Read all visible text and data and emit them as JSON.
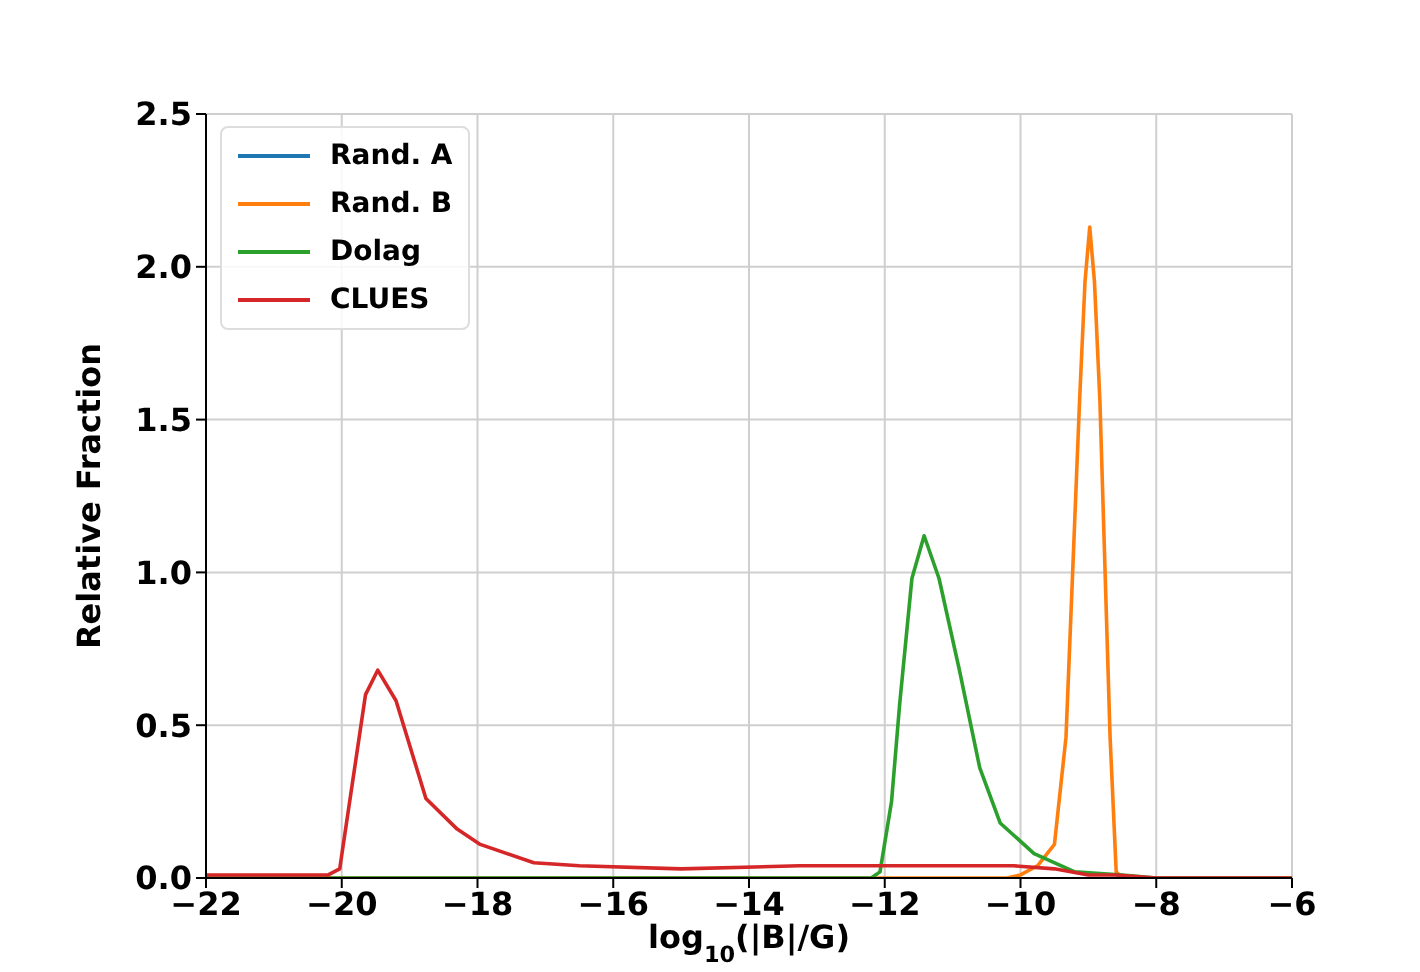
{
  "chart_data": {
    "type": "line",
    "xlabel": "log$_{10}$(|B|/G)",
    "ylabel": "Relative Fraction",
    "xlim": [
      -22,
      -6
    ],
    "xticks": [
      -22,
      -20,
      -18,
      -16,
      -14,
      -12,
      -10,
      -8,
      -6
    ],
    "ylim": [
      0,
      2.5
    ],
    "yticks": [
      {
        "value": 0,
        "label": "0.0"
      },
      0.5,
      {
        "value": 1,
        "label": "1.0"
      },
      1.5,
      {
        "value": 2,
        "label": "2.0"
      },
      2.5
    ],
    "grid": true,
    "legend": "top left",
    "marker": "none",
    "line_style": "solid",
    "series": [
      {
        "name": "Rand. A",
        "color": "#1f77b4"
      },
      {
        "name": "Rand. B",
        "color": "#ff7f0e",
        "x": [
          -22,
          -10.2,
          -10.0,
          -9.75,
          -9.5,
          -9.33,
          -9.13,
          -9.05,
          -8.98,
          -8.91,
          -8.83,
          -8.68,
          -8.59,
          -8.5,
          -6
        ],
        "values": [
          0,
          0,
          0.01,
          0.04,
          0.11,
          0.46,
          1.56,
          1.95,
          2.13,
          1.95,
          1.56,
          0.46,
          0.02,
          0,
          0
        ]
      },
      {
        "name": "Dolag",
        "color": "#2ca02c",
        "x": [
          -22,
          -12.2,
          -12.07,
          -11.9,
          -11.78,
          -11.6,
          -11.42,
          -11.2,
          -10.9,
          -10.6,
          -10.3,
          -9.8,
          -9.2,
          -8.5,
          -8,
          -6
        ],
        "values": [
          0,
          0,
          0.02,
          0.25,
          0.57,
          0.98,
          1.12,
          0.98,
          0.68,
          0.36,
          0.18,
          0.08,
          0.02,
          0.01,
          0,
          0
        ]
      },
      {
        "name": "CLUES",
        "color": "#d62728",
        "x": [
          -22,
          -20.2,
          -20.03,
          -19.85,
          -19.65,
          -19.47,
          -19.2,
          -18.76,
          -18.3,
          -17.96,
          -17.17,
          -16.5,
          -15,
          -13.25,
          -11.5,
          -10.1,
          -9.5,
          -9,
          -8.6,
          -8,
          -6
        ],
        "values": [
          0.01,
          0.01,
          0.03,
          0.3,
          0.6,
          0.68,
          0.58,
          0.26,
          0.16,
          0.11,
          0.05,
          0.04,
          0.03,
          0.04,
          0.04,
          0.04,
          0.03,
          0.01,
          0.01,
          0,
          0
        ]
      }
    ]
  }
}
